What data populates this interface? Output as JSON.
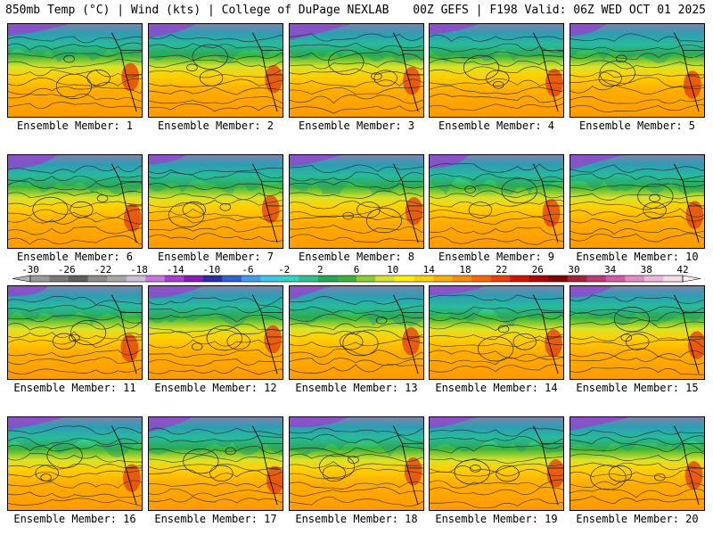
{
  "header": {
    "title_left": "850mb Temp (°C) | Wind (kts) | College of DuPage NEXLAB",
    "title_right": "00Z GEFS | F198 Valid: 06Z WED OCT 01 2025"
  },
  "colorbar": {
    "ticks": [
      "-30",
      "-26",
      "-22",
      "-18",
      "-14",
      "-10",
      "-6",
      "-2",
      "2",
      "6",
      "10",
      "14",
      "18",
      "22",
      "26",
      "30",
      "34",
      "38",
      "42"
    ],
    "colors": [
      "#9a9a9a",
      "#7a7a7a",
      "#5f5f5f",
      "#8b8b8b",
      "#a7a7a7",
      "#c9c0d9",
      "#c874e2",
      "#b03bd0",
      "#8a1cb8",
      "#2c2ba8",
      "#2f61d6",
      "#3d9ef0",
      "#39c9e8",
      "#2fd6c6",
      "#2fc28f",
      "#22a857",
      "#3bb33a",
      "#8ccd2f",
      "#d9e32a",
      "#fff000",
      "#ffd000",
      "#ffad00",
      "#ff8c00",
      "#ff6600",
      "#f23d00",
      "#d81400",
      "#b00000",
      "#860000",
      "#a8203a",
      "#c03a78",
      "#d65aa8",
      "#e48bc8",
      "#efb7de",
      "#f6dcee"
    ]
  },
  "members": [
    {
      "label": "Ensemble Member: 1"
    },
    {
      "label": "Ensemble Member: 2"
    },
    {
      "label": "Ensemble Member: 3"
    },
    {
      "label": "Ensemble Member: 4"
    },
    {
      "label": "Ensemble Member: 5"
    },
    {
      "label": "Ensemble Member: 6"
    },
    {
      "label": "Ensemble Member: 7"
    },
    {
      "label": "Ensemble Member: 8"
    },
    {
      "label": "Ensemble Member: 9"
    },
    {
      "label": "Ensemble Member: 10"
    },
    {
      "label": "Ensemble Member: 11"
    },
    {
      "label": "Ensemble Member: 12"
    },
    {
      "label": "Ensemble Member: 13"
    },
    {
      "label": "Ensemble Member: 14"
    },
    {
      "label": "Ensemble Member: 15"
    },
    {
      "label": "Ensemble Member: 16"
    },
    {
      "label": "Ensemble Member: 17"
    },
    {
      "label": "Ensemble Member: 18"
    },
    {
      "label": "Ensemble Member: 19"
    },
    {
      "label": "Ensemble Member: 20"
    }
  ]
}
